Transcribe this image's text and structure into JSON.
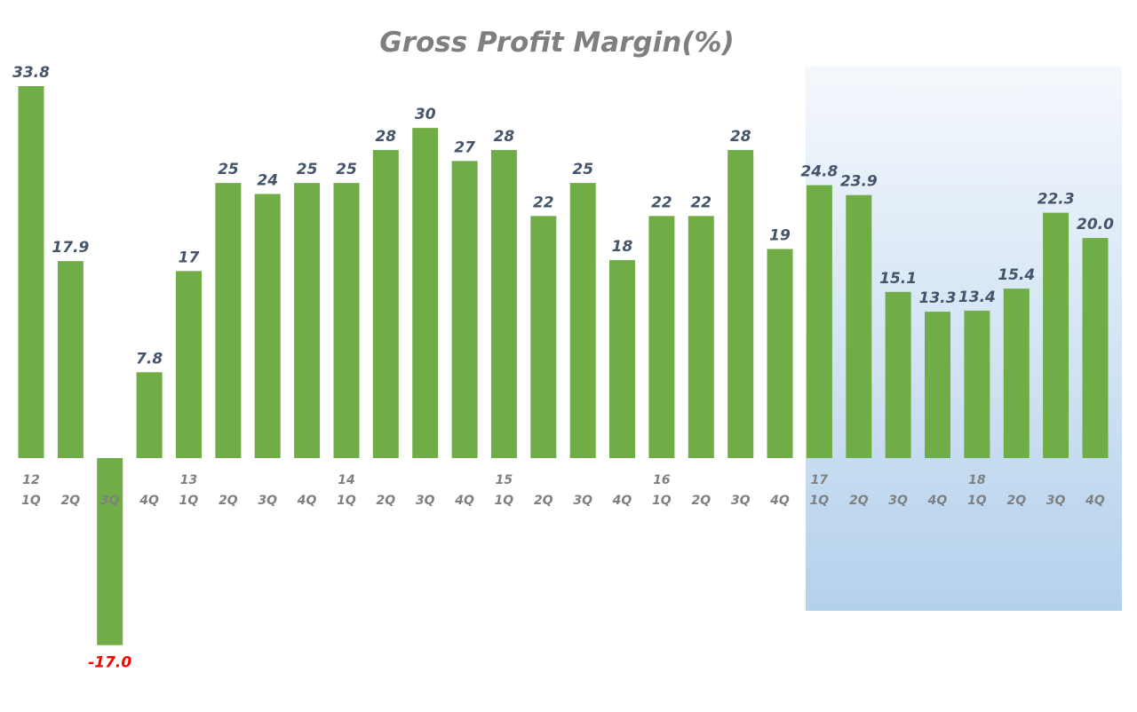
{
  "chart_data": {
    "type": "bar",
    "title": "Gross Profit Margin(%)",
    "xlabel": "",
    "ylabel": "",
    "ylim": [
      -17,
      33.8
    ],
    "grid": false,
    "legend": "none",
    "categories": [
      {
        "year": "12",
        "quarter": "1Q"
      },
      {
        "year": "",
        "quarter": "2Q"
      },
      {
        "year": "",
        "quarter": "3Q"
      },
      {
        "year": "",
        "quarter": "4Q"
      },
      {
        "year": "13",
        "quarter": "1Q"
      },
      {
        "year": "",
        "quarter": "2Q"
      },
      {
        "year": "",
        "quarter": "3Q"
      },
      {
        "year": "",
        "quarter": "4Q"
      },
      {
        "year": "14",
        "quarter": "1Q"
      },
      {
        "year": "",
        "quarter": "2Q"
      },
      {
        "year": "",
        "quarter": "3Q"
      },
      {
        "year": "",
        "quarter": "4Q"
      },
      {
        "year": "15",
        "quarter": "1Q"
      },
      {
        "year": "",
        "quarter": "2Q"
      },
      {
        "year": "",
        "quarter": "3Q"
      },
      {
        "year": "",
        "quarter": "4Q"
      },
      {
        "year": "16",
        "quarter": "1Q"
      },
      {
        "year": "",
        "quarter": "2Q"
      },
      {
        "year": "",
        "quarter": "3Q"
      },
      {
        "year": "",
        "quarter": "4Q"
      },
      {
        "year": "17",
        "quarter": "1Q"
      },
      {
        "year": "",
        "quarter": "2Q"
      },
      {
        "year": "",
        "quarter": "3Q"
      },
      {
        "year": "",
        "quarter": "4Q"
      },
      {
        "year": "18",
        "quarter": "1Q"
      },
      {
        "year": "",
        "quarter": "2Q"
      },
      {
        "year": "",
        "quarter": "3Q"
      },
      {
        "year": "",
        "quarter": "4Q"
      }
    ],
    "values": [
      33.8,
      17.9,
      -17.0,
      7.8,
      17,
      25,
      24,
      25,
      25,
      28,
      30,
      27,
      28,
      22,
      25,
      18,
      22,
      22,
      28,
      19,
      24.8,
      23.9,
      15.1,
      13.3,
      13.4,
      15.4,
      22.3,
      20.0
    ],
    "labels": [
      "33.8",
      "17.9",
      "-17.0",
      "7.8",
      "17",
      "25",
      "24",
      "25",
      "25",
      "28",
      "30",
      "27",
      "28",
      "22",
      "25",
      "18",
      "22",
      "22",
      "28",
      "19",
      "24.8",
      "23.9",
      "15.1",
      "13.3",
      "13.4",
      "15.4",
      "22.3",
      "20.0"
    ],
    "highlight_range": {
      "from": "17 1Q",
      "to": "18 4Q"
    },
    "colors": {
      "bar": "#70ad47",
      "label": "#44546a",
      "negative_label": "#ff0000",
      "tick": "#808080",
      "title": "#7f7f7f",
      "highlight_top": "#f4f8fc",
      "highlight_bottom": "#b4d1ec"
    }
  }
}
